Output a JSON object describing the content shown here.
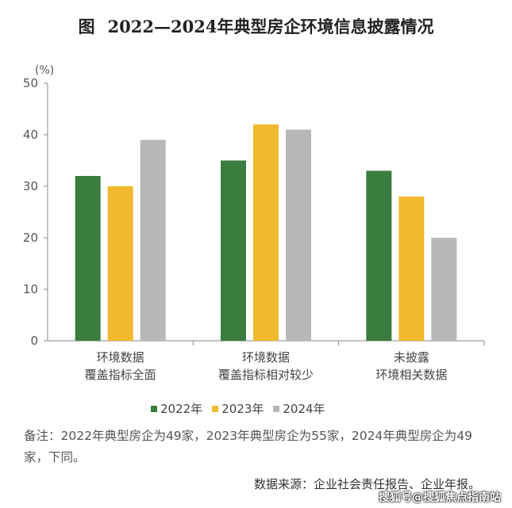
{
  "figure_prefix": "图",
  "title": "2022—2024年典型房企环境信息披露情况",
  "unit": "(%)",
  "legend": [
    {
      "label": "2022年",
      "color": "#3a7d3e"
    },
    {
      "label": "2023年",
      "color": "#f0b92e"
    },
    {
      "label": "2024年",
      "color": "#b8b8bb"
    }
  ],
  "note": "备注：2022年典型房企为49家，2023年典型房企为55家，2024年典型房企为49家，下同。",
  "source": "数据来源：企业社会责任报告、企业年报。",
  "watermark": "搜狐号@搜狐焦点指南站",
  "chart_data": {
    "type": "bar",
    "title": "2022—2024年典型房企环境信息披露情况",
    "ylabel": "(%)",
    "ylim": [
      0,
      50
    ],
    "yticks": [
      0,
      10,
      20,
      30,
      40,
      50
    ],
    "grid": false,
    "legend_position": "bottom",
    "categories": [
      [
        "环境数据",
        "覆盖指标全面"
      ],
      [
        "环境数据",
        "覆盖指标相对较少"
      ],
      [
        "未披露",
        "环境相关数据"
      ]
    ],
    "series": [
      {
        "name": "2022年",
        "color": "#3a7d3e",
        "values": [
          32,
          35,
          33
        ]
      },
      {
        "name": "2023年",
        "color": "#f0b92e",
        "values": [
          30,
          42,
          28
        ]
      },
      {
        "name": "2024年",
        "color": "#b8b8bb",
        "values": [
          39,
          41,
          20
        ]
      }
    ]
  }
}
